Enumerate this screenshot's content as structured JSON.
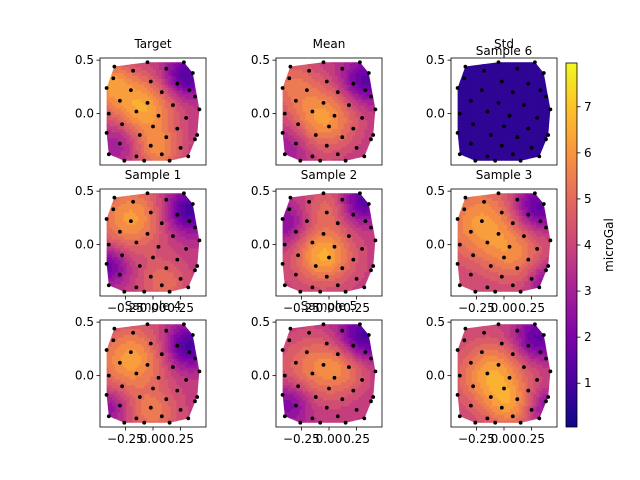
{
  "chart_data": {
    "type": "heatmap",
    "colormap": "plasma",
    "grid": false,
    "colorbar": {
      "label": "microGal",
      "ticks": [
        1,
        2,
        3,
        4,
        5,
        6,
        7
      ],
      "tick_labels": [
        "1",
        "2",
        "3",
        "4",
        "5",
        "6",
        "7"
      ],
      "vmin": 0.05,
      "vmax": 7.95
    },
    "x_ticks": [
      -0.25,
      0.0,
      0.25
    ],
    "x_tick_labels": [
      "−0.25",
      "0.00",
      "0.25"
    ],
    "y_ticks": [
      0.5,
      0.0
    ],
    "y_tick_labels": [
      "0.5",
      "0.0"
    ],
    "xlim": [
      -0.48,
      0.48
    ],
    "ylim": [
      -0.48,
      0.52
    ],
    "panels": [
      {
        "title": "Target",
        "overlay_title": "",
        "show_xticks": false,
        "show_yticks": true,
        "field": "target"
      },
      {
        "title": "Mean",
        "overlay_title": "",
        "show_xticks": false,
        "show_yticks": true,
        "field": "mean"
      },
      {
        "title": "Std",
        "overlay_title": "Sample 6",
        "show_xticks": false,
        "show_yticks": true,
        "field": "std"
      },
      {
        "title": "Sample 1",
        "overlay_title": "",
        "show_xticks": true,
        "show_yticks": true,
        "field": "s1"
      },
      {
        "title": "Sample 2",
        "overlay_title": "",
        "show_xticks": true,
        "show_yticks": true,
        "field": "s2"
      },
      {
        "title": "Sample 3",
        "overlay_title": "",
        "show_xticks": true,
        "show_yticks": true,
        "field": "s3"
      },
      {
        "title": "Sample 4",
        "overlay_title": "",
        "show_xticks": true,
        "show_yticks": true,
        "field": "s4"
      },
      {
        "title": "Sample 5",
        "overlay_title": "",
        "show_xticks": true,
        "show_yticks": true,
        "field": "s5"
      },
      {
        "title": "",
        "overlay_title": "",
        "show_xticks": true,
        "show_yticks": true,
        "field": "s6"
      }
    ],
    "stations": [
      [
        -0.05,
        0.48
      ],
      [
        0.28,
        0.48
      ],
      [
        -0.18,
        0.4
      ],
      [
        0.12,
        0.42
      ],
      [
        0.36,
        0.38
      ],
      [
        -0.36,
        0.33
      ],
      [
        -0.02,
        0.3
      ],
      [
        0.22,
        0.28
      ],
      [
        -0.42,
        0.24
      ],
      [
        -0.2,
        0.22
      ],
      [
        0.08,
        0.2
      ],
      [
        0.38,
        0.16
      ],
      [
        -0.3,
        0.12
      ],
      [
        -0.05,
        0.1
      ],
      [
        0.18,
        0.08
      ],
      [
        0.42,
        0.04
      ],
      [
        -0.4,
        0.0
      ],
      [
        -0.15,
        0.02
      ],
      [
        0.05,
        -0.02
      ],
      [
        0.3,
        -0.04
      ],
      [
        -0.28,
        -0.1
      ],
      [
        0.0,
        -0.12
      ],
      [
        0.22,
        -0.14
      ],
      [
        -0.42,
        -0.18
      ],
      [
        -0.12,
        -0.2
      ],
      [
        0.12,
        -0.22
      ],
      [
        0.38,
        -0.24
      ],
      [
        -0.3,
        -0.28
      ],
      [
        -0.02,
        -0.3
      ],
      [
        0.25,
        -0.32
      ],
      [
        -0.4,
        -0.38
      ],
      [
        -0.15,
        -0.4
      ],
      [
        0.08,
        -0.38
      ],
      [
        0.32,
        -0.4
      ],
      [
        -0.26,
        -0.44
      ],
      [
        0.15,
        -0.44
      ],
      [
        0.4,
        -0.2
      ],
      [
        -0.35,
        0.44
      ],
      [
        0.33,
        0.22
      ],
      [
        -0.08,
        -0.44
      ]
    ]
  }
}
